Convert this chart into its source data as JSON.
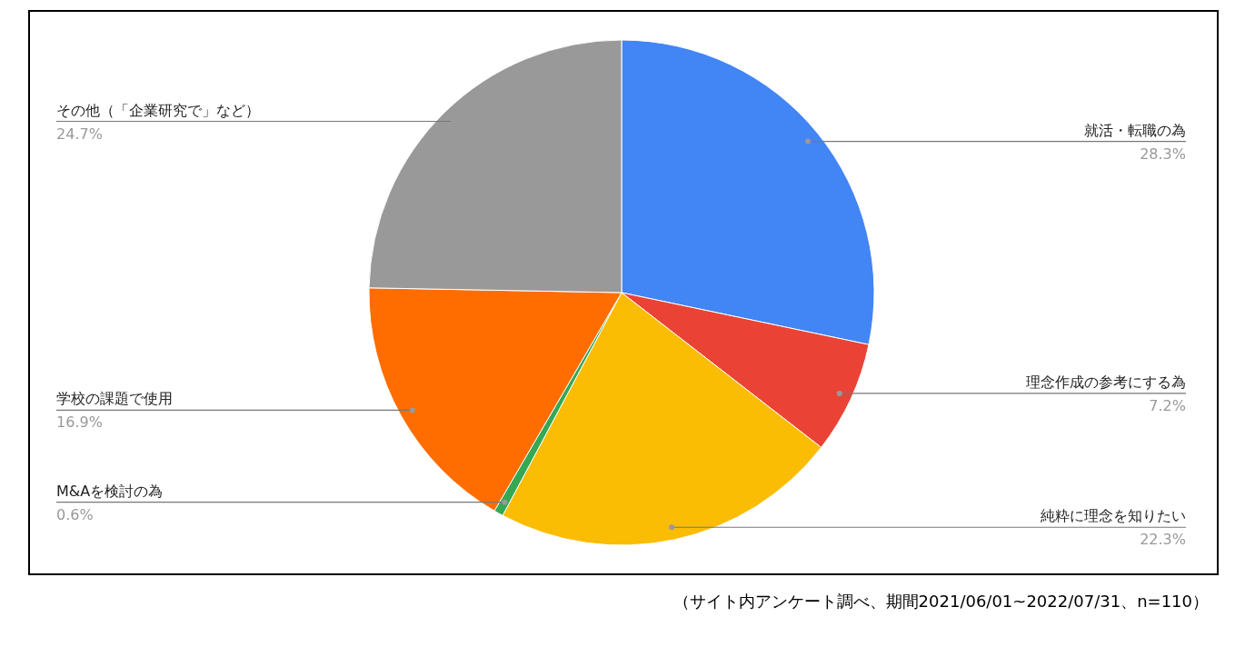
{
  "chart_data": {
    "type": "pie",
    "categories": [
      "就活・転職の為",
      "理念作成の参考にする為",
      "純粋に理念を知りたい",
      "M&Aを検討の為",
      "学校の課題で使用",
      "その他（「企業研究で」など）"
    ],
    "values": [
      28.3,
      7.2,
      22.3,
      0.6,
      16.9,
      24.7
    ],
    "colors": [
      "#4285f4",
      "#ea4335",
      "#fbbc04",
      "#34a853",
      "#ff6d01",
      "#999999"
    ],
    "value_labels": [
      "28.3%",
      "7.2%",
      "22.3%",
      "0.6%",
      "16.9%",
      "24.7%"
    ],
    "annotations": [
      "（サイト内アンケート調べ、期間2021/06/01~2022/07/31、n=110）"
    ]
  }
}
